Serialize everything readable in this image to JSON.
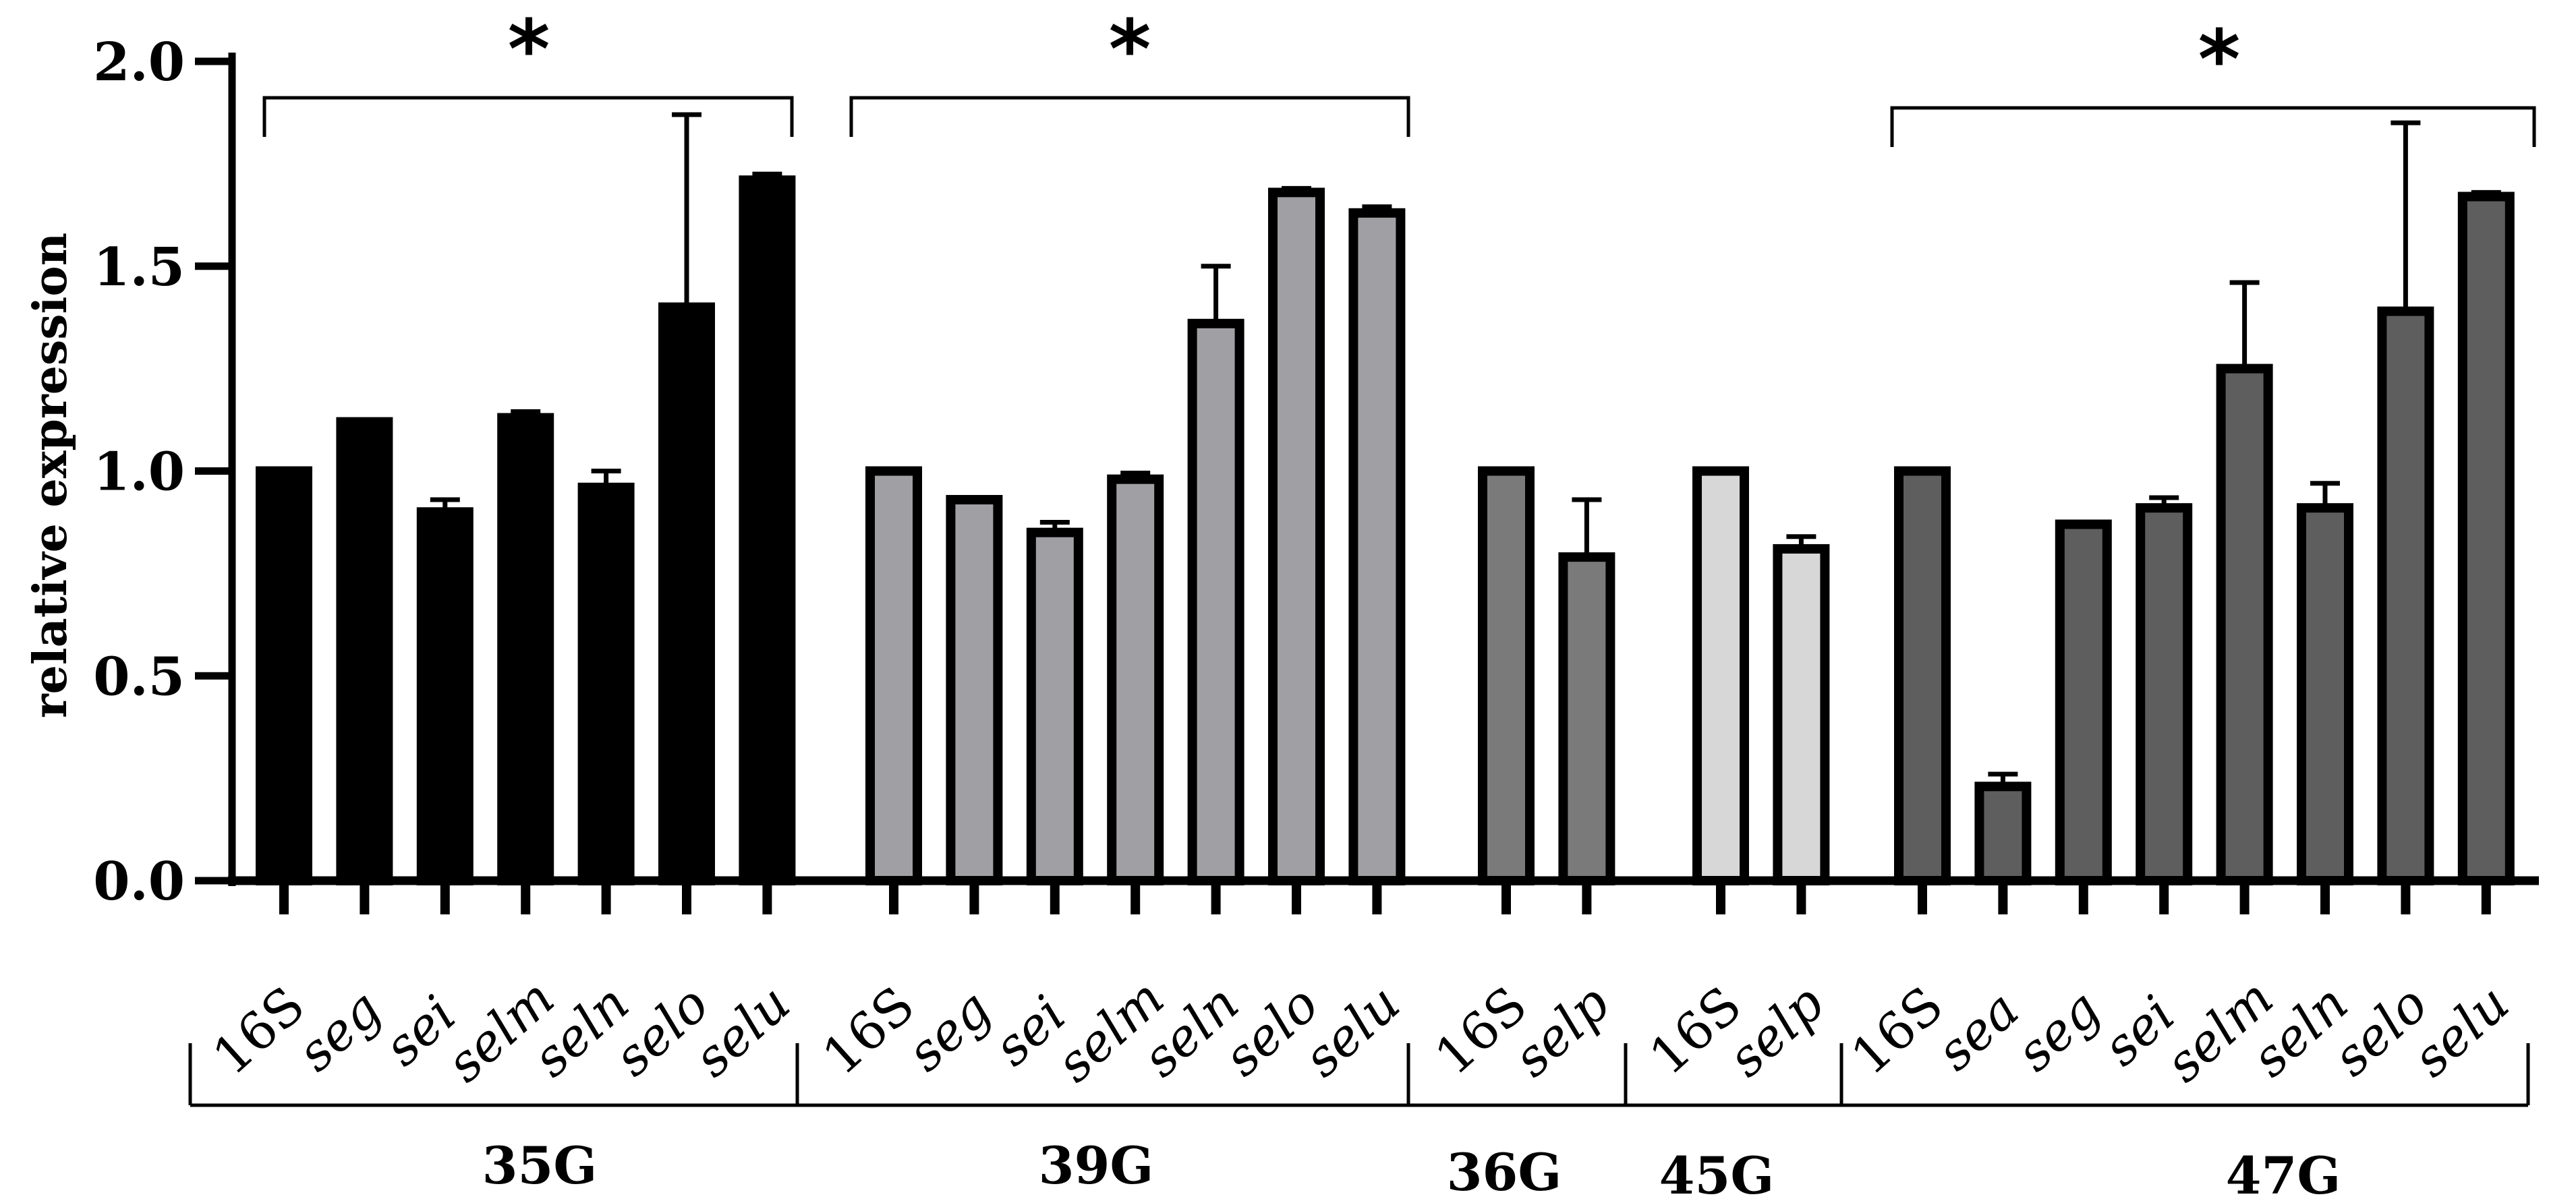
{
  "chart_data": {
    "type": "bar",
    "ylabel": "relative expression",
    "ylim": [
      0,
      2.0
    ],
    "yticks": [
      "0.0",
      "0.5",
      "1.0",
      "1.5",
      "2.0"
    ],
    "significance_marker": "*",
    "groups": [
      {
        "name": "35G",
        "color": "#000000",
        "significant": true,
        "bars": [
          {
            "label": "16S",
            "italic": false,
            "value": 1.0,
            "error": 0
          },
          {
            "label": "seg",
            "italic": true,
            "value": 1.12,
            "error": 0.005
          },
          {
            "label": "sei",
            "italic": true,
            "value": 0.9,
            "error": 0.03
          },
          {
            "label": "selm",
            "italic": true,
            "value": 1.13,
            "error": 0.015
          },
          {
            "label": "seln",
            "italic": true,
            "value": 0.96,
            "error": 0.04
          },
          {
            "label": "selo",
            "italic": true,
            "value": 1.4,
            "error": 0.47
          },
          {
            "label": "selu",
            "italic": true,
            "value": 1.71,
            "error": 0.015
          }
        ]
      },
      {
        "name": "39G",
        "color": "#a0a0a4",
        "significant": true,
        "bars": [
          {
            "label": "16S",
            "italic": false,
            "value": 1.0,
            "error": 0
          },
          {
            "label": "seg",
            "italic": true,
            "value": 0.93,
            "error": 0.005
          },
          {
            "label": "sei",
            "italic": true,
            "value": 0.85,
            "error": 0.025
          },
          {
            "label": "selm",
            "italic": true,
            "value": 0.98,
            "error": 0.015
          },
          {
            "label": "seln",
            "italic": true,
            "value": 1.36,
            "error": 0.14
          },
          {
            "label": "selo",
            "italic": true,
            "value": 1.68,
            "error": 0.01
          },
          {
            "label": "selu",
            "italic": true,
            "value": 1.63,
            "error": 0.015
          }
        ]
      },
      {
        "name": "36G",
        "color": "#7a7a7a",
        "significant": false,
        "bars": [
          {
            "label": "16S",
            "italic": false,
            "value": 1.0,
            "error": 0
          },
          {
            "label": "selp",
            "italic": true,
            "value": 0.79,
            "error": 0.14
          }
        ]
      },
      {
        "name": "45G",
        "color": "#d7d7d7",
        "significant": false,
        "bars": [
          {
            "label": "16S",
            "italic": false,
            "value": 1.0,
            "error": 0
          },
          {
            "label": "selp",
            "italic": true,
            "value": 0.81,
            "error": 0.03
          }
        ]
      },
      {
        "name": "47G",
        "color": "#5e5e5e",
        "significant": true,
        "bars": [
          {
            "label": "16S",
            "italic": false,
            "value": 1.0,
            "error": 0
          },
          {
            "label": "sea",
            "italic": true,
            "value": 0.23,
            "error": 0.03
          },
          {
            "label": "seg",
            "italic": true,
            "value": 0.87,
            "error": 0
          },
          {
            "label": "sei",
            "italic": true,
            "value": 0.91,
            "error": 0.025
          },
          {
            "label": "selm",
            "italic": true,
            "value": 1.25,
            "error": 0.21
          },
          {
            "label": "seln",
            "italic": true,
            "value": 0.91,
            "error": 0.06
          },
          {
            "label": "selo",
            "italic": true,
            "value": 1.39,
            "error": 0.46
          },
          {
            "label": "selu",
            "italic": true,
            "value": 1.67,
            "error": 0.01
          }
        ]
      }
    ]
  }
}
